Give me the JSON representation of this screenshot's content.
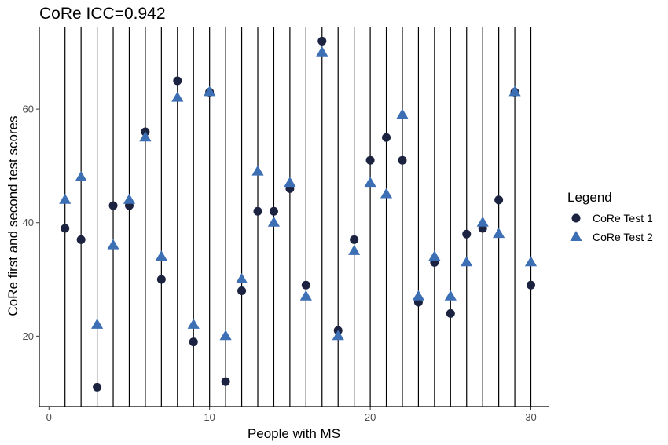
{
  "chart_data": {
    "type": "scatter",
    "title": "CoRe ICC=0.942",
    "xlabel": "People with MS",
    "ylabel": "CoRe first and second test scores",
    "xlim": [
      -0.6,
      31.1
    ],
    "ylim": [
      7.6,
      74.4
    ],
    "x_ticks": [
      0,
      10,
      20,
      30
    ],
    "y_ticks": [
      20,
      40,
      60
    ],
    "vlines": [
      1,
      2,
      3,
      4,
      5,
      6,
      7,
      8,
      9,
      10,
      11,
      12,
      13,
      14,
      15,
      16,
      17,
      18,
      19,
      20,
      21,
      22,
      23,
      24,
      25,
      26,
      27,
      28,
      29,
      30
    ],
    "grid": false,
    "legend": {
      "title": "Legend",
      "position": "right"
    },
    "series": [
      {
        "name": "CoRe Test 1",
        "marker": "circle",
        "color": "#1c2340",
        "x": [
          1,
          2,
          3,
          4,
          5,
          6,
          7,
          8,
          9,
          10,
          11,
          12,
          13,
          14,
          15,
          16,
          17,
          18,
          19,
          20,
          21,
          22,
          23,
          24,
          25,
          26,
          27,
          28,
          29,
          30
        ],
        "y": [
          39,
          37,
          11,
          43,
          43,
          56,
          30,
          65,
          19,
          63,
          12,
          28,
          42,
          42,
          46,
          29,
          72,
          21,
          37,
          51,
          55,
          51,
          26,
          33,
          24,
          38,
          39,
          44,
          63,
          29
        ]
      },
      {
        "name": "CoRe Test 2",
        "marker": "triangle",
        "color": "#3d6fb5",
        "x": [
          1,
          2,
          3,
          4,
          5,
          6,
          7,
          8,
          9,
          10,
          11,
          12,
          13,
          14,
          15,
          16,
          17,
          18,
          19,
          20,
          21,
          22,
          23,
          24,
          25,
          26,
          27,
          28,
          29,
          30
        ],
        "y": [
          44,
          48,
          22,
          36,
          44,
          55,
          34,
          62,
          22,
          63,
          20,
          30,
          49,
          40,
          47,
          27,
          70,
          20,
          35,
          47,
          45,
          59,
          27,
          34,
          27,
          33,
          40,
          38,
          63,
          33
        ]
      }
    ]
  }
}
